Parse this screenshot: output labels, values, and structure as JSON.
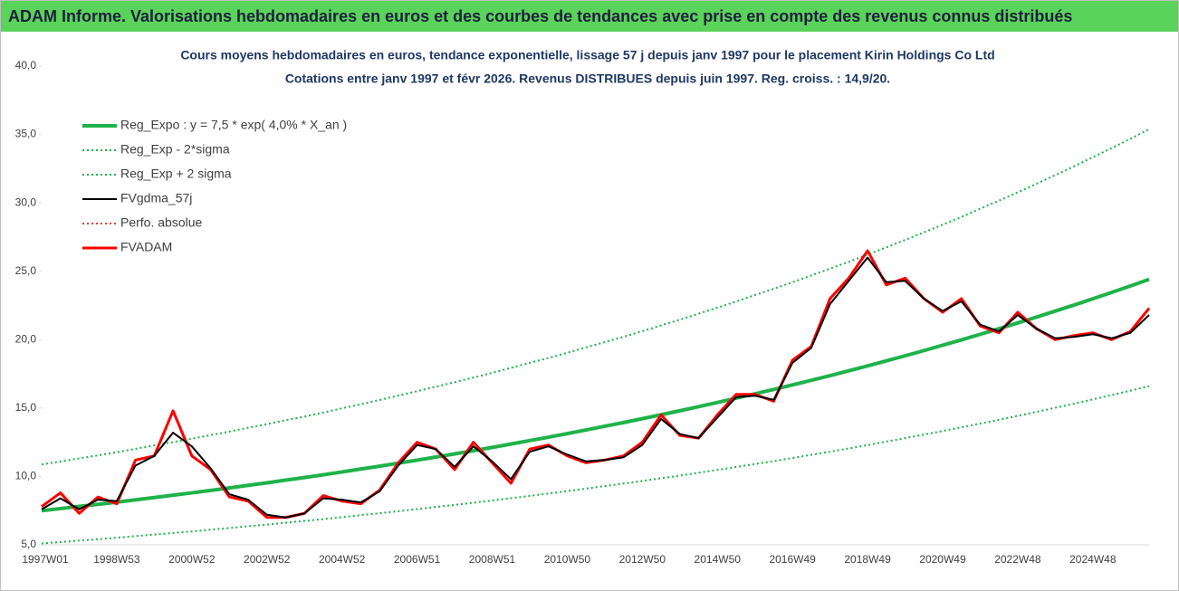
{
  "header": {
    "title": "ADAM Informe. Valorisations hebdomadaires en euros et des courbes de tendances avec prise en compte des revenus connus distribués"
  },
  "chart_data": {
    "type": "line",
    "title": "Cours moyens hebdomadaires en euros, tendance exponentielle, lissage 57 j depuis janv 1997 pour le placement Kirin Holdings Co Ltd",
    "subtitle": "Cotations entre janv 1997 et févr 2026. Revenus DISTRIBUES depuis juin 1997. Reg. croiss. : 14,9/20.",
    "categories": [
      "1997W01",
      null,
      null,
      null,
      "1998W53",
      null,
      null,
      null,
      "2000W52",
      null,
      null,
      null,
      "2002W52",
      null,
      null,
      null,
      "2004W52",
      null,
      null,
      null,
      "2006W51",
      null,
      null,
      null,
      "2008W51",
      null,
      null,
      null,
      "2010W50",
      null,
      null,
      null,
      "2012W50",
      null,
      null,
      null,
      "2014W50",
      null,
      null,
      null,
      "2016W49",
      null,
      null,
      null,
      "2018W49",
      null,
      null,
      null,
      "2020W49",
      null,
      null,
      null,
      "2022W48",
      null,
      null,
      null,
      "2024W48",
      null,
      null,
      null
    ],
    "series": [
      {
        "name": "Reg_Expo : y = 7,5 * exp( 4,0% *  X_an )",
        "color": "#1fb24a",
        "style": "solid",
        "width": 4,
        "values": [
          7.5,
          7.65,
          7.81,
          7.96,
          8.12,
          8.29,
          8.46,
          8.63,
          8.8,
          8.98,
          9.16,
          9.35,
          9.53,
          9.73,
          9.92,
          10.12,
          10.33,
          10.54,
          10.75,
          10.97,
          11.19,
          11.42,
          11.65,
          11.88,
          12.12,
          12.37,
          12.62,
          12.87,
          13.13,
          13.4,
          13.67,
          13.94,
          14.22,
          14.51,
          14.8,
          15.1,
          15.41,
          15.72,
          16.04,
          16.36,
          16.69,
          17.03,
          17.37,
          17.72,
          18.08,
          18.45,
          18.82,
          19.2,
          19.59,
          19.98,
          20.39,
          20.8,
          21.22,
          21.65,
          22.09,
          22.53,
          22.99,
          23.45,
          23.92,
          24.41
        ]
      },
      {
        "name": "Reg_Exp - 2*sigma",
        "color": "#1fb24a",
        "style": "dotted",
        "width": 2,
        "values": [
          5.1,
          5.2,
          5.31,
          5.41,
          5.52,
          5.64,
          5.75,
          5.87,
          5.98,
          6.11,
          6.23,
          6.36,
          6.48,
          6.62,
          6.75,
          6.88,
          7.02,
          7.17,
          7.31,
          7.46,
          7.61,
          7.77,
          7.92,
          8.08,
          8.24,
          8.41,
          8.58,
          8.75,
          8.93,
          9.11,
          9.3,
          9.48,
          9.67,
          9.87,
          10.06,
          10.27,
          10.48,
          10.69,
          10.91,
          11.12,
          11.35,
          11.58,
          11.81,
          12.05,
          12.29,
          12.55,
          12.8,
          13.06,
          13.32,
          13.59,
          13.87,
          14.14,
          14.43,
          14.72,
          15.02,
          15.32,
          15.63,
          15.95,
          16.27,
          16.6
        ]
      },
      {
        "name": "Reg_Exp + 2 sigma",
        "color": "#1fb24a",
        "style": "dotted",
        "width": 2,
        "values": [
          10.88,
          11.09,
          11.32,
          11.54,
          11.77,
          12.02,
          12.27,
          12.51,
          12.76,
          13.02,
          13.28,
          13.56,
          13.82,
          14.11,
          14.38,
          14.67,
          14.98,
          15.28,
          15.59,
          15.91,
          16.23,
          16.56,
          16.89,
          17.23,
          17.57,
          17.94,
          18.3,
          18.66,
          19.04,
          19.43,
          19.82,
          20.21,
          20.62,
          21.04,
          21.46,
          21.9,
          22.34,
          22.79,
          23.26,
          23.72,
          24.2,
          24.69,
          25.19,
          25.69,
          26.22,
          26.75,
          27.29,
          27.84,
          28.41,
          28.97,
          29.57,
          30.16,
          30.77,
          31.39,
          32.03,
          32.67,
          33.34,
          34.0,
          34.68,
          35.39
        ]
      },
      {
        "name": "FVgdma_57j",
        "color": "#000000",
        "style": "solid",
        "width": 2,
        "values": [
          7.6,
          8.4,
          7.6,
          8.3,
          8.2,
          10.8,
          11.5,
          13.2,
          12.2,
          10.6,
          8.7,
          8.3,
          7.2,
          7.0,
          7.3,
          8.4,
          8.3,
          8.1,
          8.9,
          10.8,
          12.3,
          12.0,
          10.7,
          12.2,
          11.1,
          9.8,
          11.8,
          12.2,
          11.6,
          11.1,
          11.2,
          11.4,
          12.3,
          14.2,
          13.1,
          12.8,
          14.3,
          15.8,
          15.9,
          15.6,
          18.3,
          19.4,
          22.6,
          24.3,
          26.0,
          24.2,
          24.3,
          23.0,
          22.1,
          22.8,
          21.1,
          20.6,
          21.8,
          20.8,
          20.1,
          20.2,
          20.4,
          20.1,
          20.5,
          21.8
        ]
      },
      {
        "name": "Perfo. absolue",
        "color": "#e00000",
        "style": "dotted",
        "width": 1.5,
        "values": [
          7.8,
          8.8,
          7.3,
          8.5,
          8.0,
          11.2,
          11.5,
          14.8,
          11.5,
          10.5,
          8.5,
          8.2,
          7.0,
          7.0,
          7.3,
          8.6,
          8.2,
          8.0,
          9.0,
          11.0,
          12.5,
          12.0,
          10.5,
          12.5,
          11.0,
          9.5,
          12.0,
          12.3,
          11.5,
          11.0,
          11.2,
          11.5,
          12.5,
          14.5,
          13.0,
          12.8,
          14.5,
          16.0,
          16.0,
          15.5,
          18.5,
          19.5,
          23.0,
          24.5,
          26.5,
          24.0,
          24.5,
          23.0,
          22.0,
          23.0,
          21.0,
          20.5,
          22.0,
          20.8,
          20.0,
          20.3,
          20.5,
          20.0,
          20.6,
          22.3
        ]
      },
      {
        "name": "FVADAM",
        "color": "#ff0000",
        "style": "solid",
        "width": 3,
        "values": [
          7.8,
          8.8,
          7.3,
          8.5,
          8.0,
          11.2,
          11.5,
          14.8,
          11.5,
          10.5,
          8.5,
          8.2,
          7.0,
          7.0,
          7.3,
          8.6,
          8.2,
          8.0,
          9.0,
          11.0,
          12.5,
          12.0,
          10.5,
          12.5,
          11.0,
          9.5,
          12.0,
          12.3,
          11.5,
          11.0,
          11.2,
          11.5,
          12.5,
          14.5,
          13.0,
          12.8,
          14.5,
          16.0,
          16.0,
          15.5,
          18.5,
          19.5,
          23.0,
          24.5,
          26.5,
          24.0,
          24.5,
          23.0,
          22.0,
          23.0,
          21.0,
          20.5,
          22.0,
          20.8,
          20.0,
          20.3,
          20.5,
          20.0,
          20.6,
          22.3
        ]
      }
    ],
    "ylim": [
      5,
      40
    ],
    "yticks": [
      {
        "value": 5,
        "label": "5,0"
      },
      {
        "value": 10,
        "label": "10,0"
      },
      {
        "value": 15,
        "label": "15,0"
      },
      {
        "value": 20,
        "label": "20,0"
      },
      {
        "value": 25,
        "label": "25,0"
      },
      {
        "value": 30,
        "label": "30,0"
      },
      {
        "value": 35,
        "label": "35,0"
      },
      {
        "value": 40,
        "label": "40,0"
      }
    ],
    "grid": false,
    "legend": "upper left"
  }
}
